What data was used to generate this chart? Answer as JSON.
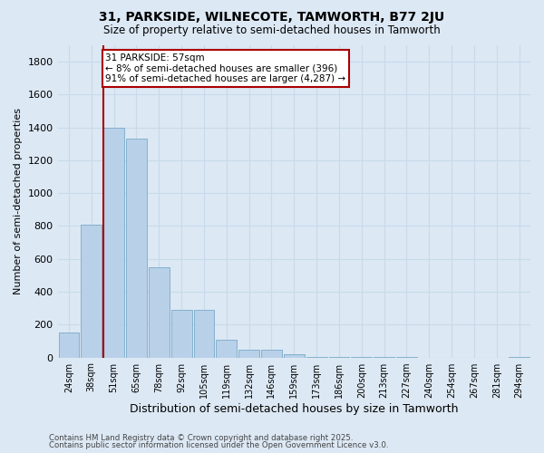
{
  "title": "31, PARKSIDE, WILNECOTE, TAMWORTH, B77 2JU",
  "subtitle": "Size of property relative to semi-detached houses in Tamworth",
  "xlabel": "Distribution of semi-detached houses by size in Tamworth",
  "ylabel": "Number of semi-detached properties",
  "footer_line1": "Contains HM Land Registry data © Crown copyright and database right 2025.",
  "footer_line2": "Contains public sector information licensed under the Open Government Licence v3.0.",
  "bin_labels": [
    "24sqm",
    "38sqm",
    "51sqm",
    "65sqm",
    "78sqm",
    "92sqm",
    "105sqm",
    "119sqm",
    "132sqm",
    "146sqm",
    "159sqm",
    "173sqm",
    "186sqm",
    "200sqm",
    "213sqm",
    "227sqm",
    "240sqm",
    "254sqm",
    "267sqm",
    "281sqm",
    "294sqm"
  ],
  "bar_values": [
    150,
    810,
    1400,
    1330,
    550,
    290,
    290,
    110,
    50,
    50,
    20,
    5,
    3,
    2,
    1,
    1,
    0,
    0,
    0,
    0,
    3
  ],
  "bar_color": "#b8d0e8",
  "bar_edge_color": "#7aaac8",
  "grid_color": "#c8daea",
  "background_color": "#dce8f4",
  "property_bin_index": 2,
  "annotation_title": "31 PARKSIDE: 57sqm",
  "annotation_line1": "← 8% of semi-detached houses are smaller (396)",
  "annotation_line2": "91% of semi-detached houses are larger (4,287) →",
  "red_line_color": "#aa0000",
  "annotation_box_color": "#ffffff",
  "annotation_box_edge": "#aa0000",
  "ylim": [
    0,
    1900
  ],
  "yticks": [
    0,
    200,
    400,
    600,
    800,
    1000,
    1200,
    1400,
    1600,
    1800
  ]
}
